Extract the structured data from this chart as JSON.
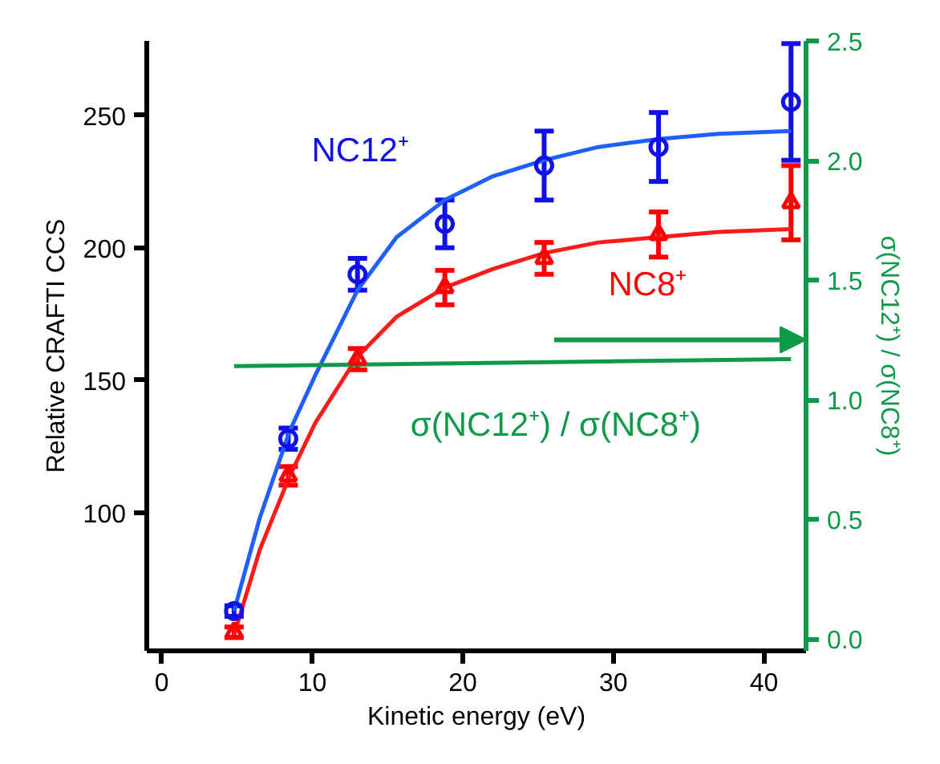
{
  "chart_data": {
    "type": "scatter",
    "xlabel": "Kinetic energy (eV)",
    "ylabel": "Relative CRAFTI CCS",
    "y2label": "σ(NC12⁺) / σ(NC8⁺)",
    "xlim": [
      -1,
      42.8
    ],
    "xticks": [
      0,
      10,
      20,
      30,
      40
    ],
    "ylim": [
      48,
      278
    ],
    "yticks": [
      100,
      150,
      200,
      250
    ],
    "y2lim": [
      -0.05,
      2.5
    ],
    "y2ticks": [
      {
        "value": 0,
        "label": "0.0"
      },
      {
        "value": 0.5,
        "label": "0.5"
      },
      {
        "value": 1,
        "label": "1.0"
      },
      {
        "value": 1.5,
        "label": "1.5"
      },
      {
        "value": 2,
        "label": "2.0"
      },
      {
        "value": 2.5,
        "label": "2.5"
      }
    ],
    "grid": false,
    "series": [
      {
        "name": "NC12⁺",
        "marker": "circle",
        "color": "#1010e8",
        "x": [
          4.8,
          8.4,
          13.0,
          18.8,
          25.4,
          33.0,
          41.8
        ],
        "values": [
          63,
          128,
          190,
          209,
          231,
          238,
          255
        ],
        "errors": [
          2,
          4,
          6,
          9,
          13,
          13,
          22
        ]
      },
      {
        "type": "line",
        "color": "#1f5fff",
        "x": [
          4.8,
          6.5,
          8.5,
          10.2,
          13.0,
          15.6,
          18.8,
          22.0,
          25.4,
          29.0,
          33.0,
          37.0,
          41.8
        ],
        "values": [
          63,
          98,
          131,
          152,
          184,
          204,
          218,
          227,
          233,
          238,
          241,
          243,
          244
        ]
      },
      {
        "name": "NC8⁺",
        "marker": "triangle",
        "color": "#ff0000",
        "x": [
          4.8,
          8.4,
          13.0,
          18.8,
          25.4,
          33.0,
          41.8
        ],
        "values": [
          55,
          114,
          158,
          185,
          196,
          205,
          217
        ],
        "errors": [
          2,
          3.5,
          4,
          6.5,
          6,
          8.5,
          14
        ]
      },
      {
        "type": "line",
        "color": "#ff1a1a",
        "x": [
          4.8,
          6.5,
          8.5,
          10.2,
          13.0,
          15.6,
          18.8,
          22.0,
          25.4,
          29.0,
          33.0,
          37.0,
          41.8
        ],
        "values": [
          54,
          86,
          114,
          134,
          159,
          174,
          185,
          192,
          198,
          202,
          204,
          206,
          207
        ]
      },
      {
        "name": "σ(NC12⁺) / σ(NC8⁺)",
        "type": "line",
        "axis": "y2",
        "color": "#0f9a4a",
        "x": [
          4.8,
          41.8
        ],
        "values": [
          1.14,
          1.17
        ]
      }
    ]
  }
}
